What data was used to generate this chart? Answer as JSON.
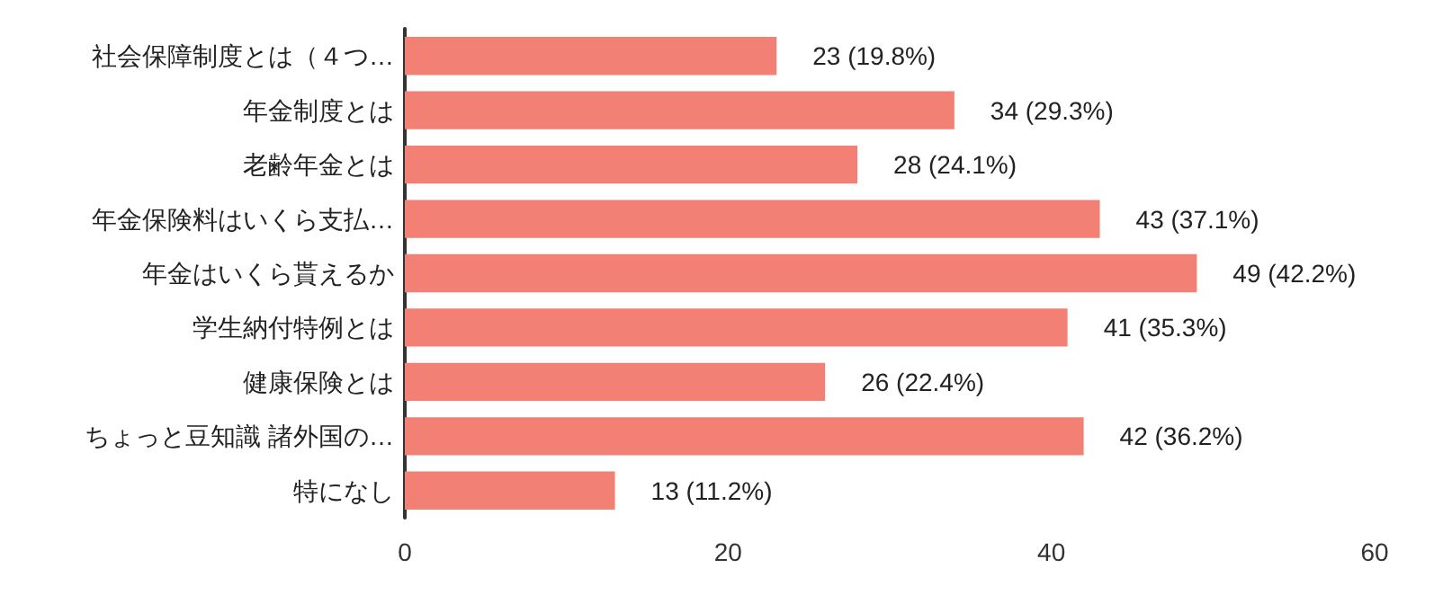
{
  "chart_data": {
    "type": "bar",
    "orientation": "horizontal",
    "categories": [
      "社会保障制度とは（４つ…",
      "年金制度とは",
      "老齢年金とは",
      "年金保険料はいくら支払…",
      "年金はいくら貰えるか",
      "学生納付特例とは",
      "健康保険とは",
      "ちょっと豆知識 諸外国の…",
      "特になし"
    ],
    "values": [
      23,
      34,
      28,
      43,
      49,
      41,
      26,
      42,
      13
    ],
    "value_labels": [
      "23 (19.8%)",
      "34 (29.3%)",
      "28 (24.1%)",
      "43 (37.1%)",
      "49 (42.2%)",
      "41 (35.3%)",
      "26 (22.4%)",
      "42 (36.2%)",
      "13 (11.2%)"
    ],
    "color": "#f28074",
    "xlim": [
      0,
      60
    ],
    "xticks": [
      0,
      20,
      40,
      60
    ],
    "grid": false
  }
}
